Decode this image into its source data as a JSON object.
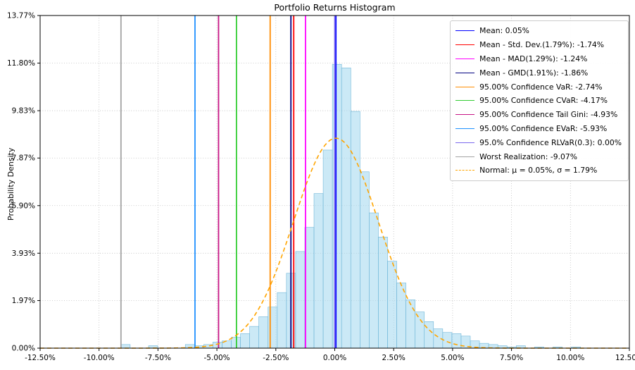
{
  "chart_data": {
    "type": "bar",
    "subtype": "histogram",
    "title": "Portfolio Returns Histogram",
    "xlabel": "",
    "ylabel": "Probability Density",
    "xlim": [
      -12.5,
      12.5
    ],
    "ylim": [
      0,
      13.77
    ],
    "grid": "dotted",
    "legend_position": "upper right",
    "x_ticks": [
      "-12.50%",
      "-10.00%",
      "-7.50%",
      "-5.00%",
      "-2.50%",
      "0.00%",
      "2.50%",
      "5.00%",
      "7.50%",
      "10.00%",
      "12.50%"
    ],
    "x_tick_values": [
      -12.5,
      -10,
      -7.5,
      -5,
      -2.5,
      0,
      2.5,
      5,
      7.5,
      10,
      12.5
    ],
    "y_ticks": [
      "0.00%",
      "1.97%",
      "3.93%",
      "5.90%",
      "7.87%",
      "9.83%",
      "11.80%",
      "13.77%"
    ],
    "y_tick_values": [
      0,
      1.97,
      3.93,
      5.9,
      7.87,
      9.83,
      11.8,
      13.77
    ],
    "bar_fill": "#a9dbf0",
    "bar_edge": "#6fb6d8",
    "bar_opacity": 0.6,
    "bins": {
      "start": -9.07,
      "width": 0.39,
      "heights": [
        0.15,
        0,
        0,
        0.1,
        0,
        0,
        0,
        0.15,
        0.1,
        0.15,
        0.25,
        0.3,
        0.45,
        0.6,
        0.9,
        1.3,
        1.7,
        2.3,
        3.1,
        4.0,
        5.0,
        6.4,
        8.2,
        11.75,
        11.6,
        9.8,
        7.3,
        5.6,
        4.6,
        3.6,
        2.7,
        2.0,
        1.5,
        1.1,
        0.8,
        0.65,
        0.6,
        0.5,
        0.3,
        0.2,
        0.15,
        0.1,
        0.05,
        0.1,
        0,
        0.05,
        0,
        0.05,
        0,
        0.05
      ]
    },
    "vlines": [
      {
        "label": "Mean: 0.05%",
        "x": 0.05,
        "color": "#0000ff"
      },
      {
        "label": "Mean - Std. Dev.(1.79%): -1.74%",
        "x": -1.74,
        "color": "#ff0000"
      },
      {
        "label": "Mean - MAD(1.29%): -1.24%",
        "x": -1.24,
        "color": "#ff00ff"
      },
      {
        "label": "Mean - GMD(1.91%): -1.86%",
        "x": -1.86,
        "color": "#000080"
      },
      {
        "label": "95.00% Confidence VaR: -2.74%",
        "x": -2.74,
        "color": "#ff8c00"
      },
      {
        "label": "95.00% Confidence CVaR: -4.17%",
        "x": -4.17,
        "color": "#32cd32"
      },
      {
        "label": "95.00% Confidence Tail Gini: -4.93%",
        "x": -4.93,
        "color": "#c71585"
      },
      {
        "label": "95.00% Confidence EVaR: -5.93%",
        "x": -5.93,
        "color": "#1e90ff"
      },
      {
        "label": "95.0% Confidence RLVaR(0.3): 0.00%",
        "x": 0.0,
        "color": "#7b68ee"
      },
      {
        "label": "Worst Realization: -9.07%",
        "x": -9.07,
        "color": "#a3a3a3"
      }
    ],
    "normal_curve": {
      "label": "Normal: μ = 0.05%, σ = 1.79%",
      "mu": 0.05,
      "sigma": 1.79,
      "color": "#ffa500",
      "style": "dashed"
    }
  }
}
